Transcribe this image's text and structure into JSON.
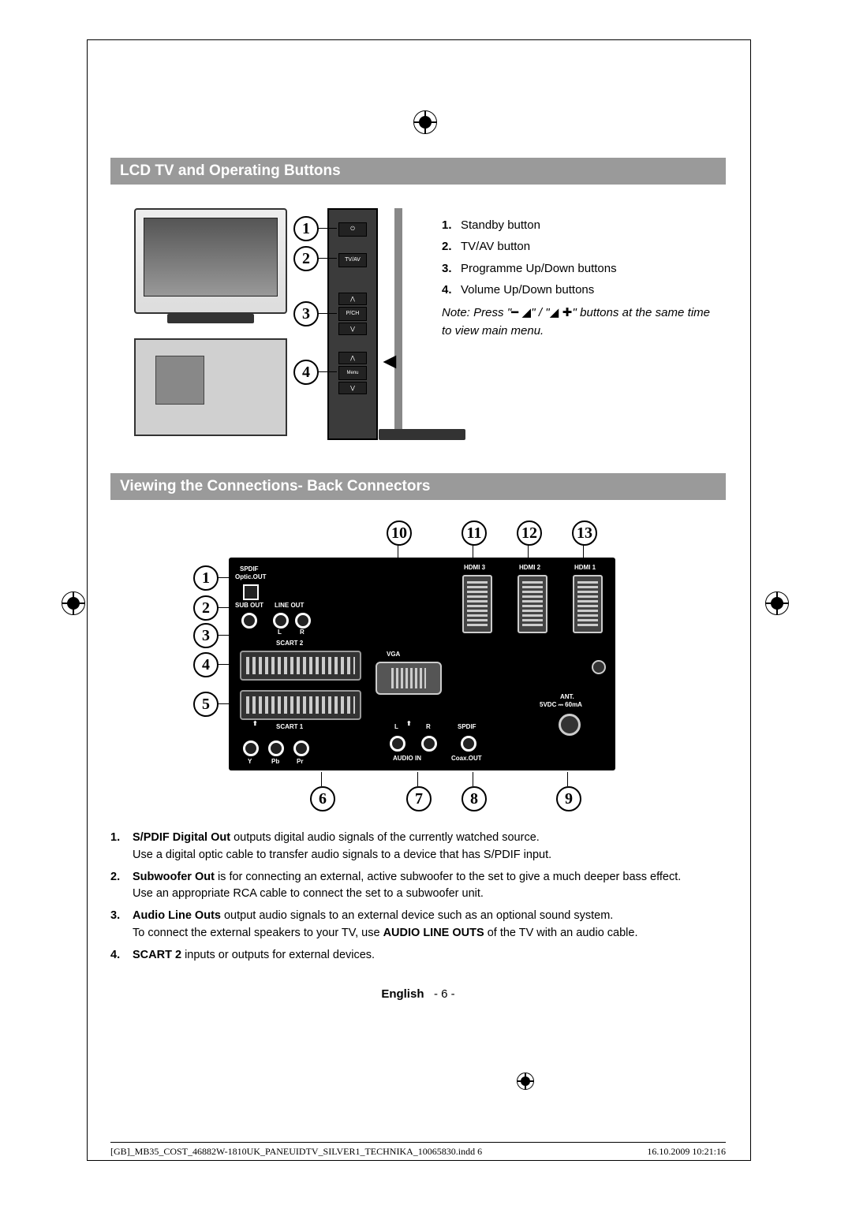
{
  "section1_title": "LCD TV and Operating Buttons",
  "section2_title": "Viewing the Connections- Back Connectors",
  "side_labels": {
    "b2": "TV/AV",
    "b3": "P/CH",
    "b4": "Menu"
  },
  "operating_buttons": [
    {
      "n": "1.",
      "t": "Standby button"
    },
    {
      "n": "2.",
      "t": "TV/AV button"
    },
    {
      "n": "3.",
      "t": "Programme Up/Down buttons"
    },
    {
      "n": "4.",
      "t": "Volume Up/Down buttons"
    }
  ],
  "note_prefix": "Note: Press \"",
  "note_mid": "\" / \"",
  "note_suffix": "\" buttons at the same time to view main menu.",
  "panel_labels": {
    "spdif": "SPDIF",
    "optic": "Optic.OUT",
    "subout": "SUB OUT",
    "lineout": "LINE OUT",
    "l": "L",
    "r": "R",
    "scart2": "SCART 2",
    "scart1": "SCART 1",
    "vga": "VGA",
    "hdmi3": "HDMI 3",
    "hdmi2": "HDMI 2",
    "hdmi1": "HDMI 1",
    "ant": "ANT.",
    "antv": "5VDC ⎓ 60mA",
    "y": "Y",
    "pb": "Pb",
    "pr": "Pr",
    "audioin": "AUDIO IN",
    "spdif2": "SPDIF",
    "coaxout": "Coax.OUT"
  },
  "callouts_top": [
    "1",
    "2",
    "3",
    "4"
  ],
  "callouts_panel_left": [
    "1",
    "2",
    "3",
    "4",
    "5"
  ],
  "callouts_panel_top": [
    "10",
    "11",
    "12",
    "13"
  ],
  "callouts_panel_bottom": [
    "6",
    "7",
    "8",
    "9"
  ],
  "descriptions": [
    {
      "n": "1.",
      "bold": "S/PDIF Digital Out",
      "t": " outputs digital audio signals of the currently watched source.",
      "sub": "Use a digital optic cable to transfer audio signals to a device that has S/PDIF input."
    },
    {
      "n": "2.",
      "bold": "Subwoofer Out",
      "t": "  is for connecting an external, active subwoofer to the set to give a much deeper bass effect.",
      "sub": "Use an appropriate RCA cable to connect the set to a subwoofer unit."
    },
    {
      "n": "3.",
      "bold": "Audio Line Outs",
      "t": " output audio signals to an external device such as an optional sound system.",
      "sub": "To connect the external speakers to your TV, use <b>AUDIO LINE OUTS</b> of the TV with an audio cable."
    },
    {
      "n": "4.",
      "bold": "SCART 2",
      "t": " inputs or outputs for external devices.",
      "sub": ""
    }
  ],
  "footer_lang": "English",
  "footer_page": "- 6 -",
  "file_name": "[GB]_MB35_COST_46882W-1810UK_PANEUIDTV_SILVER1_TECHNIKA_10065830.indd   6",
  "file_date": "16.10.2009   10:21:16"
}
